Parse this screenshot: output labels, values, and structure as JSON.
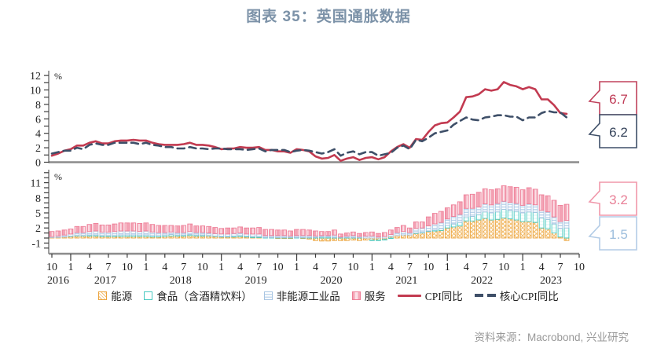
{
  "title": "图表 35：英国通胀数据",
  "source": "资料来源：Macrobond, 兴业研究",
  "colors": {
    "title": "#7c92a8",
    "axis_line": "#8c8c8c",
    "axis_text": "#1f1f1f",
    "cpi_line": "#c23a50",
    "core_cpi_line": "#3e4f68",
    "energy": "#eca43d",
    "food": "#47c9c0",
    "goods": "#a8c5e2",
    "services": "#ee7e97"
  },
  "chart_data": {
    "type": "combo",
    "x": {
      "start": "2016-10",
      "end": "2023-08",
      "month_tick_labels": [
        "10",
        "1",
        "4",
        "7",
        "10",
        "1",
        "4",
        "7",
        "10",
        "1",
        "4",
        "7",
        "10",
        "1",
        "4",
        "7",
        "10",
        "1",
        "4",
        "7",
        "10",
        "1",
        "4",
        "7",
        "10",
        "1",
        "4",
        "7",
        "10"
      ],
      "year_labels": [
        "2016",
        "2017",
        "2018",
        "2019",
        "2020",
        "2021",
        "2022",
        "2023"
      ]
    },
    "top_panel": {
      "ylabel": "%",
      "ylim": [
        0,
        12.6
      ],
      "ytick_labels": [
        "0",
        "2",
        "4",
        "6",
        "8",
        "10",
        "12"
      ],
      "series": [
        {
          "name": "CPI同比",
          "type": "line",
          "style": "solid",
          "color": "#c23a50",
          "values": [
            0.9,
            1.2,
            1.6,
            1.8,
            2.3,
            2.3,
            2.7,
            2.9,
            2.6,
            2.6,
            2.9,
            3.0,
            3.0,
            3.1,
            3.0,
            3.0,
            2.7,
            2.5,
            2.4,
            2.4,
            2.4,
            2.5,
            2.7,
            2.4,
            2.4,
            2.3,
            2.1,
            1.8,
            1.9,
            1.9,
            2.1,
            2.0,
            2.0,
            2.1,
            1.7,
            1.7,
            1.5,
            1.5,
            1.3,
            1.8,
            1.7,
            1.5,
            0.8,
            0.5,
            0.6,
            1.0,
            0.2,
            0.5,
            0.7,
            0.3,
            0.6,
            0.7,
            0.4,
            0.7,
            1.5,
            2.1,
            2.5,
            2.0,
            3.2,
            3.1,
            4.2,
            5.1,
            5.4,
            5.5,
            6.2,
            7.0,
            9.0,
            9.1,
            9.4,
            10.1,
            9.9,
            10.1,
            11.1,
            10.7,
            10.5,
            10.1,
            10.4,
            10.1,
            8.7,
            8.7,
            7.9,
            6.8,
            6.7
          ]
        },
        {
          "name": "核心CPI同比",
          "type": "line",
          "style": "dashed",
          "color": "#3e4f68",
          "values": [
            1.2,
            1.4,
            1.6,
            1.6,
            2.0,
            1.8,
            2.4,
            2.6,
            2.4,
            2.4,
            2.7,
            2.7,
            2.7,
            2.7,
            2.5,
            2.7,
            2.4,
            2.3,
            2.1,
            2.1,
            1.9,
            1.9,
            2.1,
            1.9,
            1.9,
            1.8,
            1.9,
            1.9,
            1.8,
            1.8,
            1.8,
            1.7,
            1.8,
            1.9,
            1.5,
            1.7,
            1.7,
            1.7,
            1.4,
            1.6,
            1.7,
            1.6,
            1.4,
            1.2,
            1.4,
            1.8,
            0.9,
            1.3,
            1.5,
            1.1,
            1.4,
            1.4,
            0.9,
            1.1,
            1.3,
            2.0,
            2.3,
            1.8,
            3.1,
            2.9,
            3.4,
            4.0,
            4.2,
            4.4,
            5.2,
            5.7,
            6.2,
            5.9,
            5.8,
            6.2,
            6.3,
            6.5,
            6.5,
            6.3,
            6.3,
            5.8,
            6.2,
            6.2,
            6.8,
            7.1,
            6.9,
            6.9,
            6.2
          ]
        }
      ],
      "callouts": [
        {
          "label": "6.7",
          "color": "#c0425c",
          "text_color": "#bf3a55"
        },
        {
          "label": "6.2",
          "color": "#3e4f68",
          "text_color": "#35435a"
        }
      ]
    },
    "bottom_panel": {
      "ylabel": "%",
      "ylim": [
        -3.1,
        13.4
      ],
      "ytick_labels": [
        "-1",
        "2",
        "5",
        "8",
        "11"
      ],
      "series": [
        {
          "name": "能源",
          "type": "bar",
          "pattern": "crosshatch",
          "color": "#eca43d",
          "values": [
            0.1,
            0.1,
            0.2,
            0.3,
            0.4,
            0.4,
            0.4,
            0.4,
            0.3,
            0.3,
            0.3,
            0.3,
            0.3,
            0.3,
            0.3,
            0.3,
            0.2,
            0.2,
            0.3,
            0.4,
            0.4,
            0.4,
            0.5,
            0.4,
            0.4,
            0.4,
            0.3,
            0.2,
            0.2,
            0.2,
            0.3,
            0.2,
            0.1,
            0.1,
            0.0,
            0.0,
            -0.1,
            -0.1,
            -0.1,
            0.0,
            -0.1,
            -0.2,
            -0.5,
            -0.6,
            -0.6,
            -0.5,
            -0.5,
            -0.5,
            -0.4,
            -0.5,
            -0.4,
            -0.4,
            -0.4,
            -0.3,
            0.3,
            0.5,
            0.6,
            0.6,
            0.9,
            1.0,
            1.3,
            1.4,
            1.5,
            2.0,
            2.2,
            2.4,
            3.4,
            3.4,
            3.6,
            3.9,
            3.6,
            3.7,
            4.0,
            3.8,
            3.6,
            3.3,
            3.3,
            3.1,
            2.0,
            1.8,
            1.0,
            0.2,
            -0.5
          ]
        },
        {
          "name": "食品（含酒精饮料）",
          "type": "bar",
          "pattern": "plain",
          "color": "#47c9c0",
          "values": [
            0.0,
            0.0,
            0.0,
            0.1,
            0.1,
            0.1,
            0.2,
            0.2,
            0.2,
            0.2,
            0.2,
            0.3,
            0.3,
            0.3,
            0.3,
            0.3,
            0.3,
            0.3,
            0.3,
            0.3,
            0.2,
            0.2,
            0.2,
            0.2,
            0.2,
            0.1,
            0.1,
            0.1,
            0.1,
            0.2,
            0.2,
            0.2,
            0.2,
            0.2,
            0.1,
            0.1,
            0.1,
            0.1,
            0.1,
            0.1,
            0.1,
            0.1,
            0.1,
            0.2,
            0.2,
            0.1,
            0.1,
            0.1,
            0.1,
            0.1,
            0.0,
            -0.1,
            -0.1,
            -0.1,
            -0.1,
            0.0,
            0.0,
            0.0,
            0.1,
            0.1,
            0.1,
            0.2,
            0.4,
            0.5,
            0.6,
            0.7,
            0.8,
            0.9,
            1.1,
            1.3,
            1.4,
            1.5,
            1.7,
            1.7,
            1.7,
            1.7,
            1.9,
            2.0,
            2.0,
            1.9,
            1.8,
            1.7,
            2.0
          ]
        },
        {
          "name": "非能源工业品",
          "type": "bar",
          "pattern": "hstripes",
          "color": "#a8c5e2",
          "values": [
            0.2,
            0.3,
            0.4,
            0.4,
            0.6,
            0.6,
            0.7,
            0.8,
            0.7,
            0.7,
            0.8,
            0.8,
            0.8,
            0.8,
            0.7,
            0.8,
            0.7,
            0.6,
            0.5,
            0.5,
            0.5,
            0.5,
            0.6,
            0.5,
            0.5,
            0.5,
            0.5,
            0.5,
            0.5,
            0.5,
            0.5,
            0.4,
            0.5,
            0.5,
            0.4,
            0.4,
            0.4,
            0.4,
            0.3,
            0.4,
            0.4,
            0.4,
            0.3,
            0.3,
            0.3,
            0.5,
            0.1,
            0.3,
            0.4,
            0.2,
            0.4,
            0.4,
            0.2,
            0.3,
            0.4,
            0.6,
            0.7,
            0.5,
            0.9,
            0.9,
            1.0,
            1.2,
            1.2,
            1.3,
            1.5,
            1.6,
            1.7,
            1.6,
            1.5,
            1.6,
            1.6,
            1.7,
            1.6,
            1.6,
            1.6,
            1.5,
            1.6,
            1.5,
            1.5,
            1.5,
            1.4,
            1.4,
            1.5
          ]
        },
        {
          "name": "服务",
          "type": "bar",
          "pattern": "centerstripe",
          "color": "#ee7e97",
          "values": [
            1.0,
            1.0,
            1.0,
            1.0,
            1.2,
            1.2,
            1.4,
            1.5,
            1.4,
            1.4,
            1.5,
            1.6,
            1.6,
            1.6,
            1.6,
            1.6,
            1.5,
            1.4,
            1.4,
            1.3,
            1.3,
            1.4,
            1.5,
            1.3,
            1.3,
            1.3,
            1.2,
            1.1,
            1.2,
            1.1,
            1.2,
            1.2,
            1.2,
            1.3,
            1.2,
            1.2,
            1.1,
            1.1,
            1.0,
            1.2,
            1.2,
            1.1,
            1.0,
            0.8,
            0.8,
            1.0,
            0.6,
            0.6,
            0.7,
            0.6,
            0.7,
            0.8,
            0.7,
            0.8,
            0.9,
            1.0,
            1.2,
            0.9,
            1.3,
            1.2,
            1.8,
            2.1,
            2.2,
            2.2,
            2.3,
            2.5,
            2.7,
            2.8,
            2.9,
            3.0,
            3.0,
            2.9,
            3.1,
            3.1,
            3.2,
            3.1,
            3.2,
            3.1,
            3.1,
            3.2,
            3.3,
            3.2,
            3.2
          ]
        }
      ],
      "callouts": [
        {
          "label": "3.2",
          "color": "#f097aa",
          "text_color": "#e87f96"
        },
        {
          "label": "1.5",
          "color": "#b3cce6",
          "text_color": "#9dbedd"
        }
      ]
    }
  }
}
